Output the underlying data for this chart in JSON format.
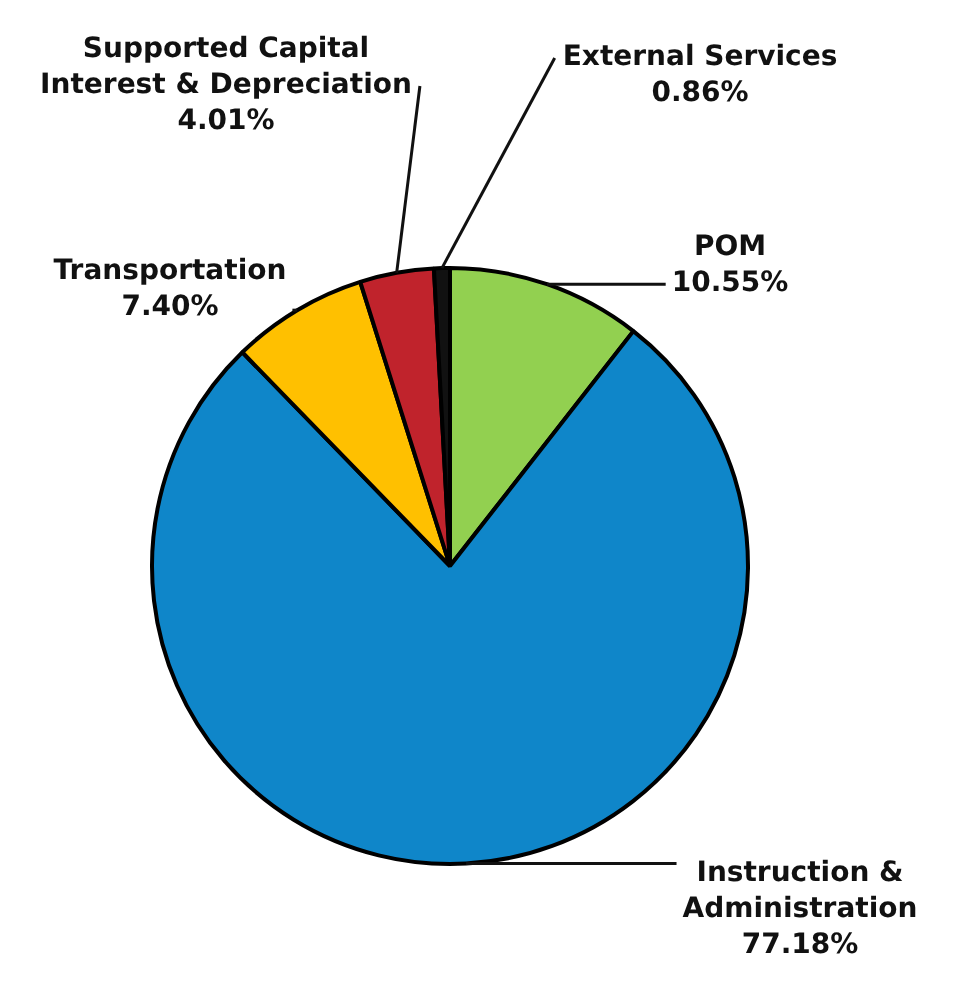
{
  "chart_data": {
    "type": "pie",
    "categories": [
      "POM",
      "Instruction & Administration",
      "Transportation",
      "Supported Capital Interest & Depreciation",
      "External Services"
    ],
    "values": [
      10.55,
      77.18,
      7.4,
      4.01,
      0.86
    ],
    "value_labels": [
      "10.55%",
      "77.18%",
      "7.40%",
      "4.01%",
      "0.86%"
    ],
    "colors": [
      "#92d050",
      "#0f86c9",
      "#ffc000",
      "#c0232c",
      "#111111"
    ],
    "legend": false
  }
}
